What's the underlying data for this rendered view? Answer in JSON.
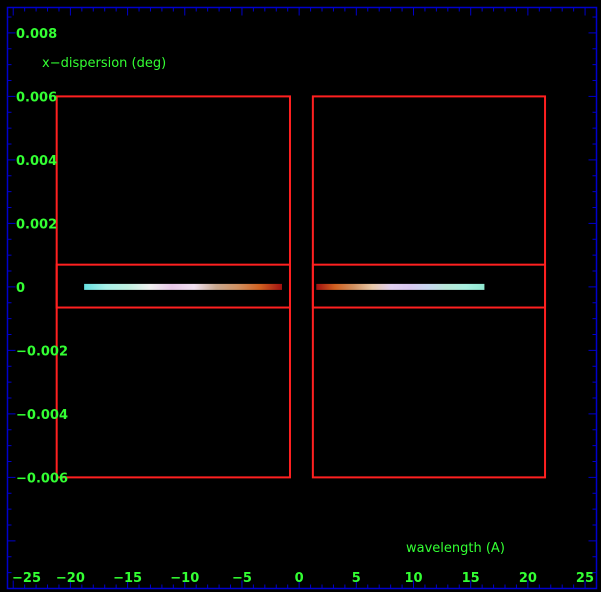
{
  "chart_data": {
    "type": "scatter",
    "xlabel": "wavelength (A)",
    "ylabel": "x−dispersion (deg)",
    "xlim": [
      -25.5,
      26
    ],
    "ylim": [
      -0.0095,
      0.0088
    ],
    "x_ticks": [
      "−25",
      "−20",
      "−15",
      "−10",
      "−5",
      "0",
      "5",
      "10",
      "15",
      "20",
      "25"
    ],
    "x_tick_values": [
      -25,
      -20,
      -15,
      -10,
      -5,
      0,
      5,
      10,
      15,
      20,
      25
    ],
    "y_ticks": [
      "0.008",
      "0.006",
      "0.004",
      "0.002",
      "0",
      "−0.002",
      "−0.004",
      "−0.006"
    ],
    "y_tick_values": [
      0.008,
      0.006,
      0.004,
      0.002,
      0,
      -0.002,
      -0.004,
      -0.006
    ],
    "background_color": "#000000",
    "frame_color": "#0000cc",
    "label_color": "#33ff33",
    "region_color": "#ff2020",
    "regions": [
      {
        "name": "negative-order-chip",
        "x": [
          -21.2,
          -0.8
        ],
        "y": [
          -0.006,
          0.006
        ]
      },
      {
        "name": "positive-order-chip",
        "x": [
          1.2,
          21.5
        ],
        "y": [
          -0.006,
          0.006
        ]
      },
      {
        "name": "extraction-band-negative",
        "x": [
          -21.2,
          -0.8
        ],
        "y": [
          -0.00065,
          0.0007
        ]
      },
      {
        "name": "extraction-band-positive",
        "x": [
          1.2,
          21.5
        ],
        "y": [
          -0.00065,
          0.0007
        ]
      }
    ],
    "series": [
      {
        "x_range": [
          -18.8,
          -1.5
        ],
        "y": 0,
        "colors": [
          "#66e0e0",
          "#a8f0e8",
          "#c0f0e0",
          "#f0f0f0",
          "#e8c8e8",
          "#f0e0f0",
          "#c8a890",
          "#d09060",
          "#d06020",
          "#a01010"
        ]
      },
      {
        "x_range": [
          1.5,
          16.2
        ],
        "y": 0,
        "colors": [
          "#a01010",
          "#d06020",
          "#d09060",
          "#e8c8a8",
          "#e0d0f0",
          "#d8c8f0",
          "#c8d8f0",
          "#b8e8d8",
          "#a8f0e0",
          "#90e8d0"
        ]
      }
    ]
  }
}
